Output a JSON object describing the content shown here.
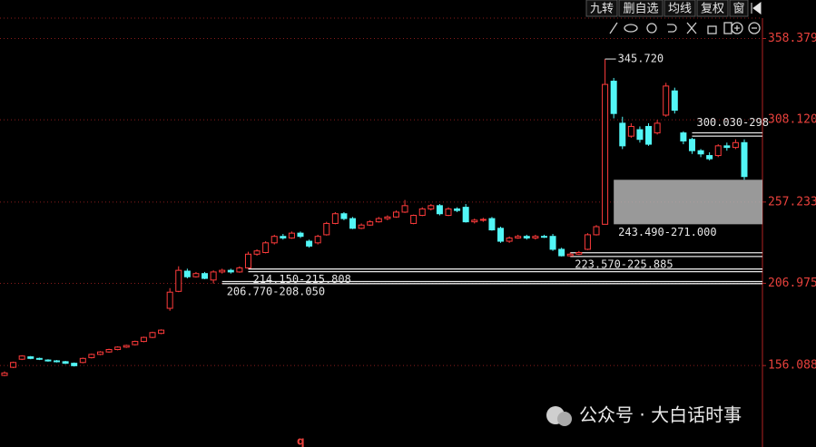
{
  "toolbar": {
    "buttons": [
      "九转",
      "删自选",
      "均线",
      "复权",
      "窗"
    ]
  },
  "watermark": "公众号 · 大白话时事",
  "marker": "q",
  "chart_data": {
    "type": "candlestick",
    "open": [
      150,
      155,
      160,
      161.5,
      160.5,
      159.5,
      159,
      158.5,
      157.5,
      158,
      161,
      163,
      164.5,
      166,
      167.5,
      169,
      171,
      173.5,
      176,
      191.5,
      202,
      214.5,
      211,
      213,
      209,
      214,
      215,
      214,
      216.5,
      225,
      226,
      232,
      236,
      235,
      238,
      233,
      232,
      237,
      244,
      250,
      247,
      241,
      243,
      245,
      247,
      248,
      251,
      244,
      249,
      253,
      255,
      249,
      253,
      254,
      245,
      246,
      247,
      241,
      233,
      235,
      236,
      235,
      236,
      236,
      228,
      224,
      225,
      228,
      237,
      243.49,
      332,
      306,
      298,
      302,
      304,
      300,
      311,
      326,
      300,
      296,
      289,
      286,
      286,
      292,
      291,
      294
    ],
    "high": [
      152.5,
      158.5,
      162.5,
      162,
      161,
      160,
      159.5,
      159,
      158,
      161,
      163.5,
      165,
      166.5,
      168,
      169,
      171.5,
      174,
      177,
      178.5,
      204,
      217.5,
      216,
      214,
      214,
      215,
      216,
      216,
      217.5,
      226.5,
      228,
      233,
      237,
      237.5,
      239,
      239,
      234,
      237,
      245,
      251,
      251,
      248,
      244,
      246,
      248,
      249,
      252,
      258.5,
      249.5,
      254,
      256,
      256,
      254,
      254,
      256,
      247,
      247.5,
      248,
      242,
      236,
      237,
      237,
      237,
      237,
      237.5,
      229,
      226,
      227,
      238,
      243,
      345.72,
      334,
      310,
      306,
      304,
      306,
      308,
      331,
      328,
      301,
      297,
      290,
      288,
      293,
      294,
      296,
      296
    ],
    "low": [
      149.5,
      154.5,
      159.5,
      160,
      159.5,
      158.5,
      158,
      157,
      155.5,
      157.5,
      160.5,
      162.5,
      164,
      165.5,
      167,
      168.5,
      170.5,
      173,
      175.5,
      190,
      201.5,
      210,
      210.5,
      209.5,
      206.77,
      213,
      213,
      213.5,
      216,
      224,
      225.5,
      231,
      234,
      234.5,
      235,
      229,
      231,
      236.5,
      243.5,
      246,
      240.5,
      240.5,
      242.5,
      244.5,
      246,
      247.5,
      250.5,
      243.5,
      248.5,
      252,
      249,
      248.5,
      251,
      244.5,
      244,
      245,
      239.5,
      232,
      232,
      234.5,
      234,
      234,
      235,
      227,
      223.57,
      223.5,
      224.5,
      227.5,
      236.5,
      243.49,
      309,
      290,
      297,
      294,
      292,
      299,
      310,
      312,
      293,
      287,
      285,
      283,
      285,
      289,
      290,
      271
    ],
    "close": [
      151.5,
      158,
      162,
      160.5,
      160,
      159,
      158.5,
      157.5,
      156,
      160.5,
      163,
      164.5,
      166,
      167.5,
      168.5,
      171,
      173.5,
      176.5,
      178,
      201.5,
      215,
      211,
      213,
      210,
      214,
      215,
      214,
      216.5,
      225,
      227,
      232,
      236,
      235,
      238,
      236,
      230,
      236,
      244,
      250,
      247,
      241,
      243,
      245,
      247,
      248,
      251,
      255,
      249,
      253,
      255,
      250,
      253,
      252,
      245,
      246,
      246.5,
      240,
      233,
      235,
      236,
      235,
      236,
      235.5,
      228,
      224,
      225,
      226,
      237,
      242,
      330,
      312,
      292,
      304,
      296,
      293,
      306,
      329,
      314,
      295,
      289,
      287,
      284,
      292,
      291,
      294,
      273
    ],
    "up_color": "#ff3b3b",
    "down_color": "#52f6f6",
    "ylim": [
      113,
      371
    ],
    "yticks": [
      358.379,
      {
        "value": 308.12,
        "label": "308.120"
      },
      257.233,
      206.975,
      156.088
    ],
    "grid": true,
    "peak": {
      "value": 345.72,
      "label": "345.720"
    },
    "zones": [
      {
        "low": 298,
        "high": 300.03,
        "label": "300.030-298"
      },
      {
        "low": 243.49,
        "high": 271,
        "label": "243.490-271.000",
        "filled": true
      },
      {
        "low": 223.57,
        "high": 225.885,
        "label": "223.570-225.885"
      },
      {
        "low": 214.15,
        "high": 215.808,
        "label": "214.150-215.808"
      },
      {
        "low": 206.77,
        "high": 208.05,
        "label": "206.770-208.050"
      }
    ]
  }
}
